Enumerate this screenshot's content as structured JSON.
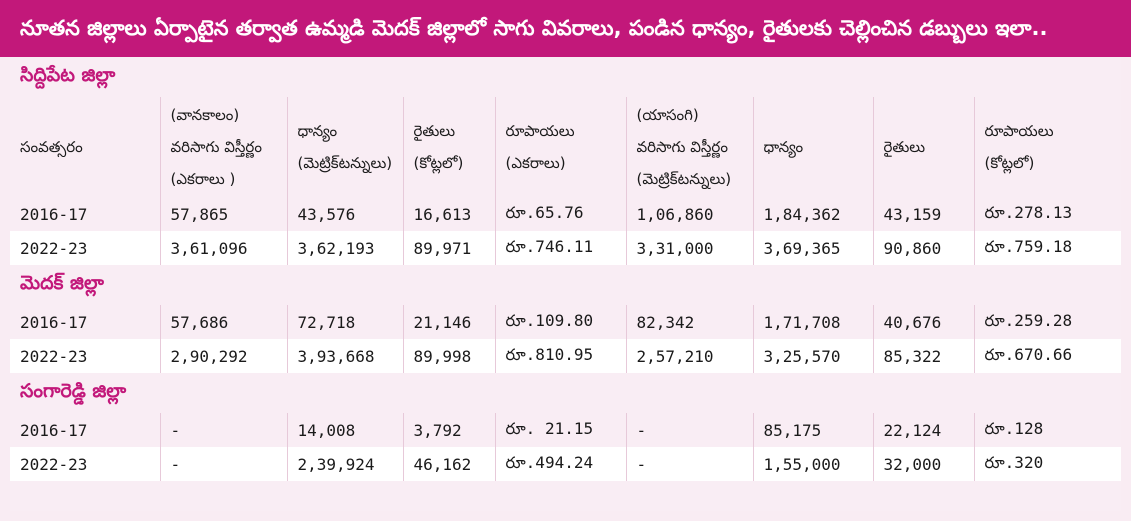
{
  "title": "నూతన జిల్లాలు ఏర్పాటైన తర్వాత ఉమ్మడి మెదక్ జిల్లాలో సాగు వివరాలు, పండిన ధాన్యం, రైతులకు చెల్లించిన డబ్బులు ఇలా..",
  "header": {
    "year": "సంవత్సరం",
    "vanakalam_label": "(వానకాలం)",
    "area": "వరిసాగు విస్తీర్ణం",
    "area_unit": "(ఎకరాలు )",
    "grain": "ధాన్యం",
    "grain_unit": "(మెట్రిక్‌టన్నులు)",
    "farmers": "రైతులు",
    "farmers_unit": "(కోట్లలో)",
    "rupees": "రూపాయలు",
    "rupees_unit": "(ఎకరాలు)",
    "yasangi_label": "(యాసంగి)",
    "area2": "వరిసాగు విస్తీర్ణం",
    "area2_unit": "(మెట్రిక్‌టన్నులు)",
    "grain2": "ధాన్యం",
    "farmers2": "రైతులు",
    "rupees2": "రూపాయలు",
    "rupees2_unit": "(కోట్లలో)"
  },
  "districts": [
    {
      "name": "సిద్దిపేట జిల్లా",
      "rows": [
        [
          "2016-17",
          "57,865",
          "43,576",
          "16,613",
          "రూ.65.76",
          "1,06,860",
          "1,84,362",
          "43,159",
          "రూ.278.13"
        ],
        [
          "2022-23",
          "3,61,096",
          "3,62,193",
          "89,971",
          "రూ.746.11",
          "3,31,000",
          "3,69,365",
          "90,860",
          "రూ.759.18"
        ]
      ]
    },
    {
      "name": "మెదక్ జిల్లా",
      "rows": [
        [
          "2016-17",
          "57,686",
          "72,718",
          "21,146",
          "రూ.109.80",
          "82,342",
          "1,71,708",
          "40,676",
          "రూ.259.28"
        ],
        [
          "2022-23",
          "2,90,292",
          "3,93,668",
          "89,998",
          "రూ.810.95",
          "2,57,210",
          "3,25,570",
          "85,322",
          "రూ.670.66"
        ]
      ]
    },
    {
      "name": "సంగారెడ్డి జిల్లా",
      "rows": [
        [
          "2016-17",
          "-",
          "14,008",
          "3,792",
          "రూ. 21.15",
          "-",
          "85,175",
          "22,124",
          "రూ.128"
        ],
        [
          "2022-23",
          "-",
          "2,39,924",
          "46,162",
          "రూ.494.24",
          "-",
          "1,55,000",
          "32,000",
          "రూ.320"
        ]
      ]
    }
  ],
  "colors": {
    "banner": "#c2187a",
    "background": "#f9edf4",
    "district_title": "#c2187a"
  }
}
